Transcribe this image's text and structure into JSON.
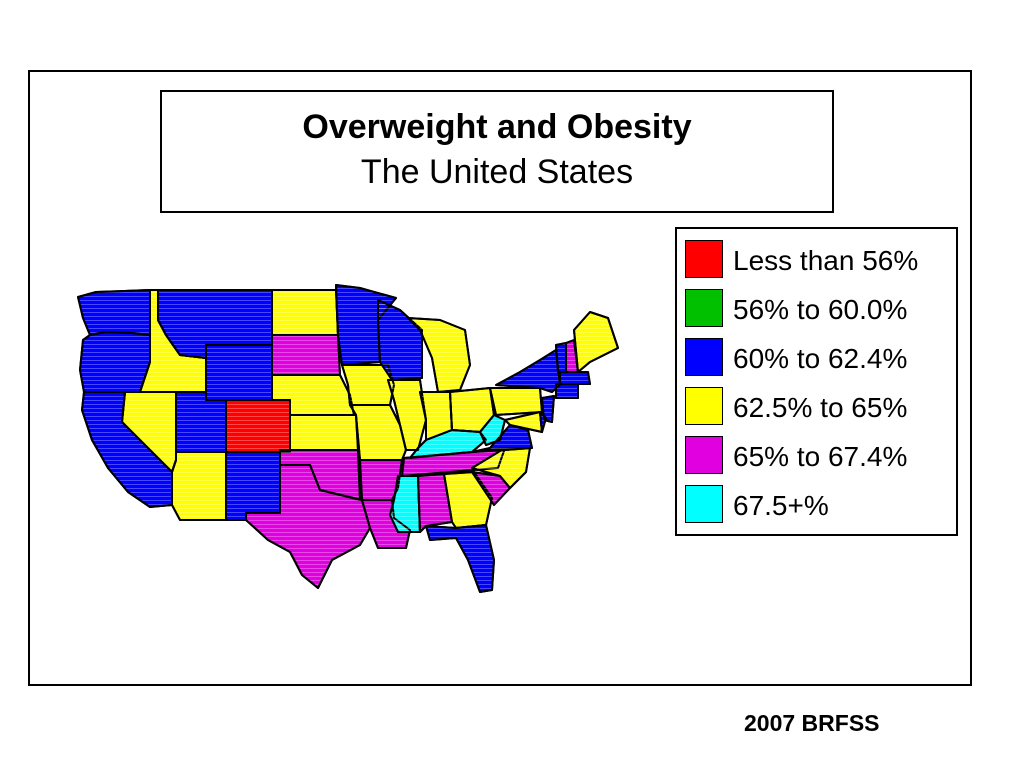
{
  "title": "Overweight and Obesity",
  "subtitle": "The United States",
  "source": "2007 BRFSS",
  "legend": [
    {
      "label": "Less than 56%",
      "color": "#ff0000"
    },
    {
      "label": "56% to 60.0%",
      "color": "#00c000"
    },
    {
      "label": "60% to 62.4%",
      "color": "#0000ff"
    },
    {
      "label": "62.5% to 65%",
      "color": "#ffff00"
    },
    {
      "label": "65% to 67.4%",
      "color": "#e000e0"
    },
    {
      "label": "67.5+%",
      "color": "#00ffff"
    }
  ],
  "states": [
    {
      "id": "WA",
      "category": 2
    },
    {
      "id": "OR",
      "category": 2
    },
    {
      "id": "CA",
      "category": 2
    },
    {
      "id": "ID",
      "category": 3
    },
    {
      "id": "NV",
      "category": 3
    },
    {
      "id": "MT",
      "category": 2
    },
    {
      "id": "WY",
      "category": 2
    },
    {
      "id": "UT",
      "category": 2
    },
    {
      "id": "CO",
      "category": 0
    },
    {
      "id": "AZ",
      "category": 3
    },
    {
      "id": "NM",
      "category": 2
    },
    {
      "id": "ND",
      "category": 3
    },
    {
      "id": "SD",
      "category": 4
    },
    {
      "id": "NE",
      "category": 3
    },
    {
      "id": "KS",
      "category": 3
    },
    {
      "id": "OK",
      "category": 4
    },
    {
      "id": "TX",
      "category": 4
    },
    {
      "id": "MN",
      "category": 2
    },
    {
      "id": "IA",
      "category": 3
    },
    {
      "id": "MO",
      "category": 3
    },
    {
      "id": "AR",
      "category": 4
    },
    {
      "id": "LA",
      "category": 4
    },
    {
      "id": "WI",
      "category": 2
    },
    {
      "id": "IL",
      "category": 3
    },
    {
      "id": "MI",
      "category": 3
    },
    {
      "id": "IN",
      "category": 3
    },
    {
      "id": "OH",
      "category": 3
    },
    {
      "id": "KY",
      "category": 5
    },
    {
      "id": "TN",
      "category": 4
    },
    {
      "id": "MS",
      "category": 5
    },
    {
      "id": "AL",
      "category": 4
    },
    {
      "id": "GA",
      "category": 3
    },
    {
      "id": "FL",
      "category": 2
    },
    {
      "id": "SC",
      "category": 4
    },
    {
      "id": "NC",
      "category": 3
    },
    {
      "id": "VA",
      "category": 2
    },
    {
      "id": "WV",
      "category": 5
    },
    {
      "id": "PA",
      "category": 3
    },
    {
      "id": "NY",
      "category": 2
    },
    {
      "id": "VT",
      "category": 2
    },
    {
      "id": "NH",
      "category": 4
    },
    {
      "id": "ME",
      "category": 3
    },
    {
      "id": "MA",
      "category": 2
    },
    {
      "id": "CT",
      "category": 2
    },
    {
      "id": "NJ",
      "category": 2
    },
    {
      "id": "MD",
      "category": 3
    },
    {
      "id": "DE",
      "category": 2
    }
  ]
}
